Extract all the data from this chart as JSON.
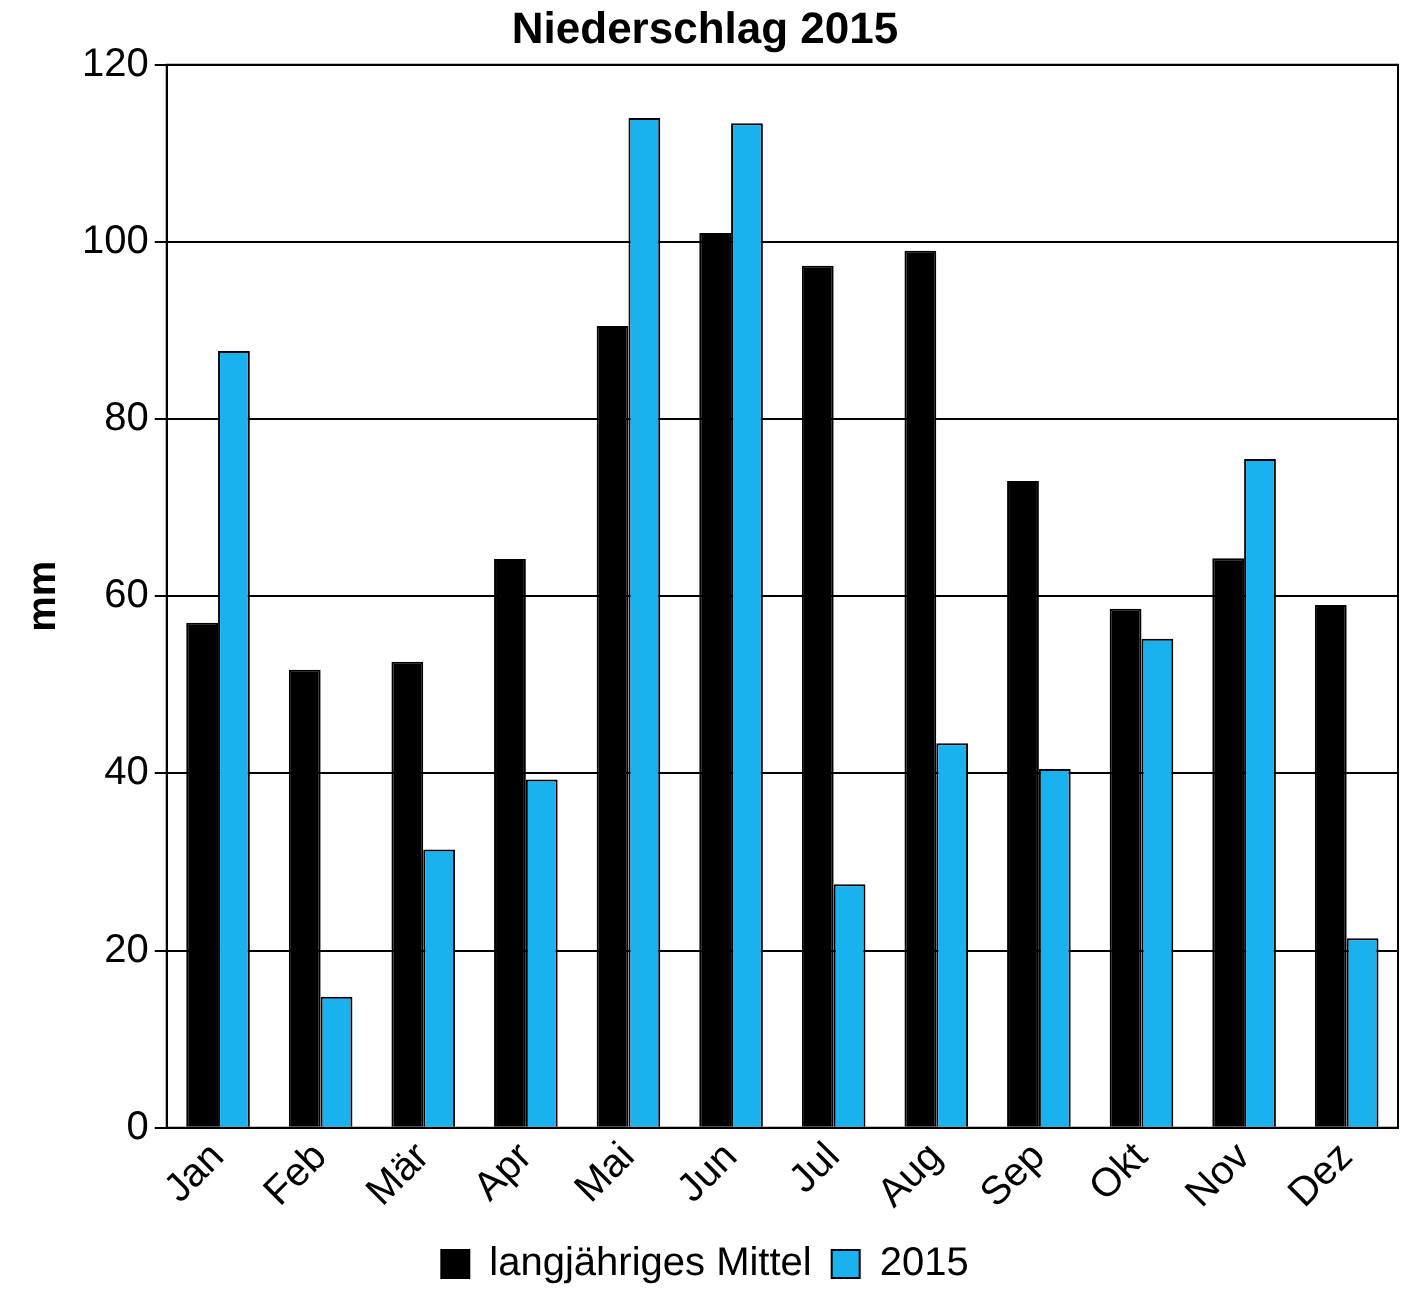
{
  "chart_data": {
    "type": "bar",
    "title": "Niederschlag 2015",
    "ylabel": "mm",
    "categories": [
      "Jan",
      "Feb",
      "Mär",
      "Apr",
      "Mai",
      "Jun",
      "Jul",
      "Aug",
      "Sep",
      "Okt",
      "Nov",
      "Dez"
    ],
    "series": [
      {
        "name": "langjähriges Mittel",
        "color": "#000000",
        "values": [
          57,
          51.7,
          52.6,
          64.2,
          90.5,
          101,
          97.3,
          99,
          73,
          58.6,
          64.3,
          59
        ]
      },
      {
        "name": "2015",
        "color": "#1ab2ee",
        "values": [
          87.7,
          14.8,
          31.4,
          39.3,
          114,
          113.4,
          27.5,
          43.4,
          40.5,
          55.2,
          75.5,
          21.4
        ]
      }
    ],
    "ylim": [
      0,
      120
    ],
    "yticks": [
      0,
      20,
      40,
      60,
      80,
      100,
      120
    ],
    "grid": "y",
    "legend": "bottom"
  }
}
